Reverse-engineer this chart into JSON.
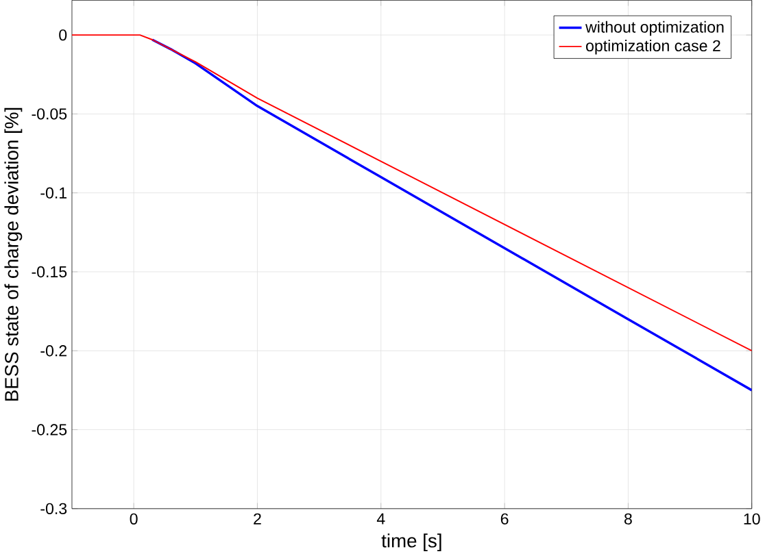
{
  "chart_data": {
    "type": "line",
    "xlabel": "time [s]",
    "ylabel": "BESS state of charge deviation [%]",
    "xlim": [
      -1,
      10
    ],
    "ylim": [
      -0.3,
      0.022
    ],
    "xticks": [
      0,
      2,
      4,
      6,
      8,
      10
    ],
    "yticks": [
      0,
      -0.05,
      -0.1,
      -0.15,
      -0.2,
      -0.25,
      -0.3
    ],
    "grid": true,
    "legend": "top right",
    "line_style": "solid",
    "series": [
      {
        "name": "without optimization",
        "color": "#0000ff",
        "x": [
          0.3,
          0.6,
          1,
          2,
          4,
          6,
          8,
          10
        ],
        "values": [
          -0.003,
          -0.009,
          -0.018,
          -0.045,
          -0.09,
          -0.135,
          -0.18,
          -0.225
        ]
      },
      {
        "name": "optimization case 2",
        "color": "#ff0000",
        "x": [
          -1,
          0,
          0.1,
          0.3,
          0.6,
          1,
          2,
          4,
          6,
          8,
          10
        ],
        "values": [
          0,
          0,
          0,
          -0.003,
          -0.009,
          -0.017,
          -0.04,
          -0.08,
          -0.12,
          -0.16,
          -0.2
        ]
      }
    ]
  }
}
